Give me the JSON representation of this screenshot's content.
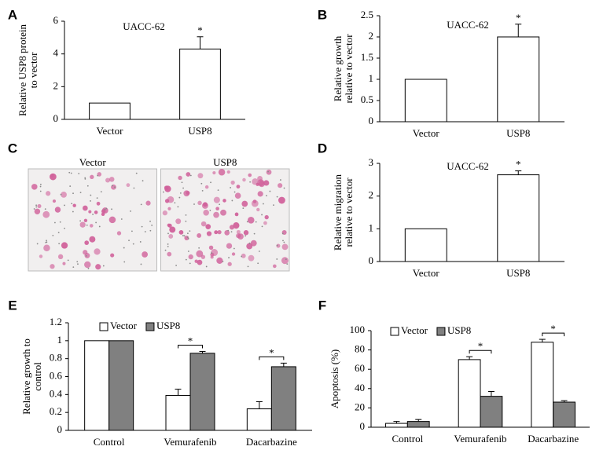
{
  "chart_data": [
    {
      "type": "bar",
      "panel": "A",
      "title": "UACC-62",
      "ylabel": [
        "Relative  USP8 protein",
        "to vector"
      ],
      "categories": [
        "Vector",
        "USP8"
      ],
      "values": [
        1,
        4.3
      ],
      "errors": [
        0,
        0.75
      ],
      "color": "#ffffff",
      "ylim": [
        0,
        6
      ],
      "yticks": [
        0,
        2,
        4,
        6
      ],
      "annotations": [
        "*"
      ]
    },
    {
      "type": "bar",
      "panel": "B",
      "title": "UACC-62",
      "ylabel": [
        "Relative  growth",
        "relative  to vector"
      ],
      "categories": [
        "Vector",
        "USP8"
      ],
      "values": [
        1,
        2.0
      ],
      "errors": [
        0,
        0.3
      ],
      "color": "#ffffff",
      "ylim": [
        0,
        2.5
      ],
      "yticks": [
        0,
        0.5,
        1,
        1.5,
        2,
        2.5
      ],
      "annotations": [
        "*"
      ]
    },
    {
      "type": "image",
      "panel": "C",
      "labels": [
        "Vector",
        "USP8"
      ]
    },
    {
      "type": "bar",
      "panel": "D",
      "title": "UACC-62",
      "ylabel": [
        "Relative  migration",
        "relative  to vector"
      ],
      "categories": [
        "Vector",
        "USP8"
      ],
      "values": [
        1,
        2.65
      ],
      "errors": [
        0,
        0.12
      ],
      "color": "#ffffff",
      "ylim": [
        0,
        3
      ],
      "yticks": [
        0,
        1,
        2,
        3
      ],
      "annotations": [
        "*"
      ]
    },
    {
      "type": "grouped-bar",
      "panel": "E",
      "ylabel": [
        "Relative  growth to",
        "control"
      ],
      "categories": [
        "Control",
        "Vemurafenib",
        "Dacarbazine"
      ],
      "series": [
        {
          "name": "Vector",
          "color": "#ffffff",
          "values": [
            1,
            0.39,
            0.24
          ],
          "errors": [
            0,
            0.07,
            0.08
          ]
        },
        {
          "name": "USP8",
          "color": "#808080",
          "values": [
            1,
            0.86,
            0.71
          ],
          "errors": [
            0,
            0.02,
            0.04
          ]
        }
      ],
      "ylim": [
        0,
        1.2
      ],
      "yticks": [
        0,
        0.2,
        0.4,
        0.6,
        0.8,
        1,
        1.2
      ],
      "annotations": [
        "*",
        "*"
      ]
    },
    {
      "type": "grouped-bar",
      "panel": "F",
      "ylabel": [
        "Apoptosis (%)"
      ],
      "categories": [
        "Control",
        "Vemurafenib",
        "Dacarbazine"
      ],
      "series": [
        {
          "name": "Vector",
          "color": "#ffffff",
          "values": [
            4,
            70,
            88
          ],
          "errors": [
            2,
            3,
            3
          ]
        },
        {
          "name": "USP8",
          "color": "#808080",
          "values": [
            6,
            32,
            26
          ],
          "errors": [
            2,
            5,
            1.5
          ]
        }
      ],
      "ylim": [
        0,
        100
      ],
      "yticks": [
        0,
        20,
        40,
        60,
        80,
        100
      ],
      "annotations": [
        "*",
        "*"
      ]
    }
  ]
}
